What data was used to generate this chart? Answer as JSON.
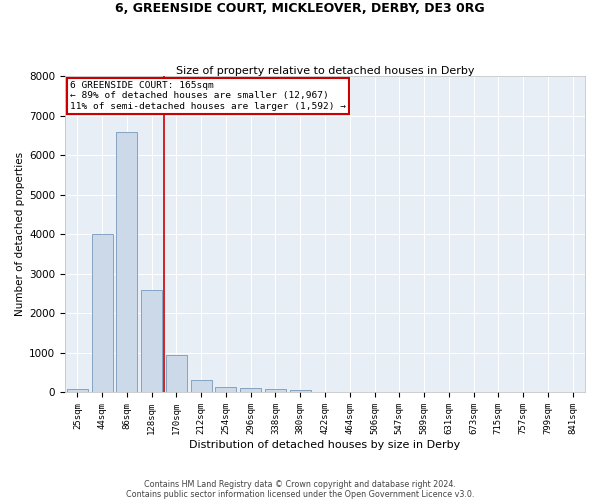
{
  "title_line1": "6, GREENSIDE COURT, MICKLEOVER, DERBY, DE3 0RG",
  "title_line2": "Size of property relative to detached houses in Derby",
  "xlabel": "Distribution of detached houses by size in Derby",
  "ylabel": "Number of detached properties",
  "bar_color": "#ccd9e8",
  "bar_edge_color": "#7799bb",
  "background_color": "#e8eef5",
  "grid_color": "#ffffff",
  "annotation_box_color": "#cc0000",
  "vline_color": "#cc0000",
  "vline_x_idx": 4,
  "annotation_title": "6 GREENSIDE COURT: 165sqm",
  "annotation_line1": "← 89% of detached houses are smaller (12,967)",
  "annotation_line2": "11% of semi-detached houses are larger (1,592) →",
  "categories": [
    "25sqm",
    "44sqm",
    "86sqm",
    "128sqm",
    "170sqm",
    "212sqm",
    "254sqm",
    "296sqm",
    "338sqm",
    "380sqm",
    "422sqm",
    "464sqm",
    "506sqm",
    "547sqm",
    "589sqm",
    "631sqm",
    "673sqm",
    "715sqm",
    "757sqm",
    "799sqm",
    "841sqm"
  ],
  "values": [
    80,
    4000,
    6600,
    2600,
    950,
    320,
    130,
    120,
    80,
    60,
    0,
    0,
    0,
    0,
    0,
    0,
    0,
    0,
    0,
    0,
    0
  ],
  "ylim": [
    0,
    8000
  ],
  "yticks": [
    0,
    1000,
    2000,
    3000,
    4000,
    5000,
    6000,
    7000,
    8000
  ],
  "footer_line1": "Contains HM Land Registry data © Crown copyright and database right 2024.",
  "footer_line2": "Contains public sector information licensed under the Open Government Licence v3.0."
}
